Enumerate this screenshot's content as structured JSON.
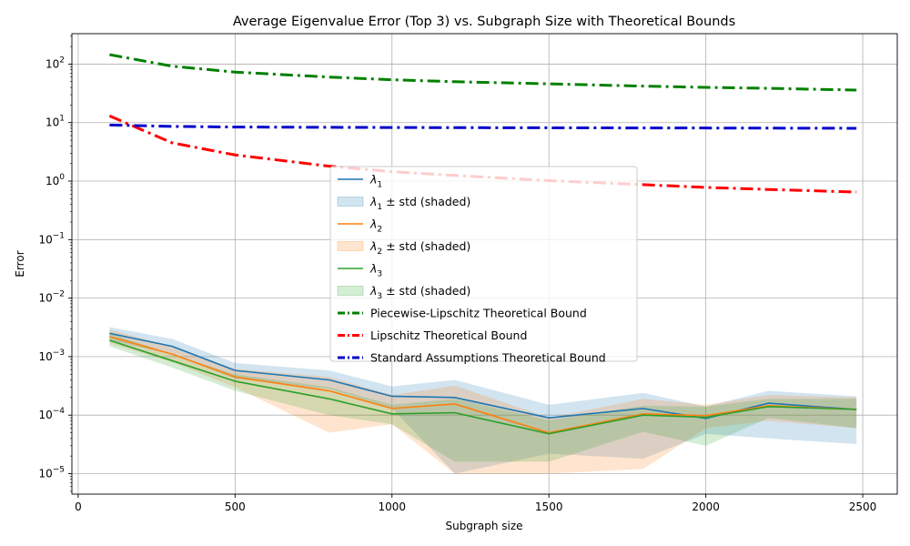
{
  "chart_data": {
    "type": "line",
    "title": "Average Eigenvalue Error (Top 3) vs. Subgraph Size with Theoretical Bounds",
    "xlabel": "Subgraph size",
    "ylabel": "Error",
    "yscale": "log",
    "xlim": [
      -20,
      2610
    ],
    "ylim_log10": [
      -5.35,
      2.52
    ],
    "grid": true,
    "legend_position": "center",
    "x_ticks": [
      0,
      500,
      1000,
      1500,
      2000,
      2500
    ],
    "x_tick_labels": [
      "0",
      "500",
      "1000",
      "1500",
      "2000",
      "2500"
    ],
    "y_ticks_log10": [
      2,
      1,
      0,
      -1,
      -2,
      -3,
      -4,
      -5
    ],
    "y_tick_labels": [
      {
        "base": "10",
        "exp": "2"
      },
      {
        "base": "10",
        "exp": "1"
      },
      {
        "base": "10",
        "exp": "0"
      },
      {
        "base": "10",
        "exp": "−1"
      },
      {
        "base": "10",
        "exp": "−2"
      },
      {
        "base": "10",
        "exp": "−3"
      },
      {
        "base": "10",
        "exp": "−4"
      },
      {
        "base": "10",
        "exp": "−5"
      }
    ],
    "x": [
      100,
      300,
      500,
      800,
      1000,
      1200,
      1500,
      1800,
      2000,
      2200,
      2480
    ],
    "series": [
      {
        "name": "λ1",
        "legend_base": "λ",
        "legend_sub": "1",
        "legend_suffix": "",
        "color": "#1f77b4",
        "values": [
          0.0025,
          0.0015,
          0.00058,
          0.0004,
          0.00021,
          0.0002,
          9e-05,
          0.00013,
          8.8e-05,
          0.00016,
          0.000125
        ],
        "lower": [
          0.0019,
          0.0011,
          0.00042,
          0.00028,
          0.00013,
          1e-05,
          2.2e-05,
          1.8e-05,
          4.8e-05,
          4e-05,
          3.2e-05
        ],
        "upper": [
          0.0032,
          0.002,
          0.00078,
          0.00058,
          0.00031,
          0.0004,
          0.00015,
          0.00024,
          0.00014,
          0.00026,
          0.00021
        ],
        "band_label": {
          "base": "λ",
          "sub": "1",
          "suffix": " ± std (shaded)"
        },
        "band_color": "#1f77b4"
      },
      {
        "name": "λ2",
        "legend_base": "λ",
        "legend_sub": "2",
        "legend_suffix": "",
        "color": "#ff7f0e",
        "values": [
          0.0022,
          0.0011,
          0.00045,
          0.00026,
          0.00013,
          0.000155,
          5e-05,
          0.000105,
          9.8e-05,
          0.000145,
          0.000125
        ],
        "lower": [
          0.0017,
          0.0008,
          0.0003,
          5e-05,
          7e-05,
          1e-05,
          1e-05,
          1.2e-05,
          6e-05,
          8e-05,
          6e-05
        ],
        "upper": [
          0.0029,
          0.0015,
          0.00062,
          0.00045,
          0.00022,
          0.00032,
          9e-05,
          0.00019,
          0.00015,
          0.00022,
          0.0002
        ],
        "band_label": {
          "base": "λ",
          "sub": "2",
          "suffix": " ± std (shaded)"
        },
        "band_color": "#ff7f0e"
      },
      {
        "name": "λ3",
        "legend_base": "λ",
        "legend_sub": "3",
        "legend_suffix": "",
        "color": "#2ca02c",
        "values": [
          0.0019,
          0.00085,
          0.00038,
          0.00019,
          0.000105,
          0.00011,
          4.8e-05,
          0.0001,
          9.2e-05,
          0.00014,
          0.000125
        ],
        "lower": [
          0.0015,
          0.00065,
          0.00026,
          0.0001,
          7e-05,
          1.6e-05,
          1.6e-05,
          5.2e-05,
          3e-05,
          9e-05,
          6e-05
        ],
        "upper": [
          0.0025,
          0.0011,
          0.0005,
          0.0003,
          0.00015,
          0.00019,
          8.2e-05,
          0.000145,
          0.00014,
          0.00019,
          0.00019
        ],
        "band_label": {
          "base": "λ",
          "sub": "3",
          "suffix": " ± std (shaded)"
        },
        "band_color": "#2ca02c"
      }
    ],
    "bounds": [
      {
        "name": "Piecewise-Lipschitz Theoretical Bound",
        "color": "#008000",
        "values": [
          145,
          92,
          73,
          60,
          54,
          50,
          46,
          42,
          40,
          38.5,
          36
        ]
      },
      {
        "name": "Lipschitz Theoretical Bound",
        "color": "#ff0000",
        "values": [
          13,
          4.5,
          2.8,
          1.8,
          1.45,
          1.25,
          1.02,
          0.87,
          0.78,
          0.72,
          0.65
        ]
      },
      {
        "name": "Standard Assumptions Theoretical Bound",
        "color": "#0000cc",
        "values": [
          9.1,
          8.6,
          8.4,
          8.3,
          8.25,
          8.2,
          8.15,
          8.1,
          8.08,
          8.05,
          8.0
        ]
      }
    ]
  }
}
